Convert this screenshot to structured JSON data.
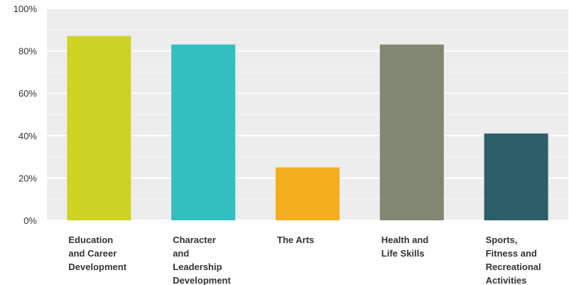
{
  "chart_data": {
    "type": "bar",
    "categories": [
      [
        "Education",
        "and Career",
        "Development"
      ],
      [
        "Character",
        "and",
        "Leadership",
        "Development"
      ],
      [
        "The Arts"
      ],
      [
        "Health and",
        "Life Skills"
      ],
      [
        "Sports,",
        "Fitness and",
        "Recreational",
        "Activities"
      ]
    ],
    "values": [
      87,
      83,
      25,
      83,
      41
    ],
    "colors": [
      "#cdd424",
      "#32bfbf",
      "#f4ae1d",
      "#828773",
      "#2c5f68"
    ],
    "ylim": [
      0,
      100
    ],
    "yticks": [
      "0%",
      "20%",
      "40%",
      "60%",
      "80%",
      "100%"
    ],
    "grid": true,
    "plot_background": "#ededed",
    "title": "",
    "xlabel": "",
    "ylabel": ""
  }
}
